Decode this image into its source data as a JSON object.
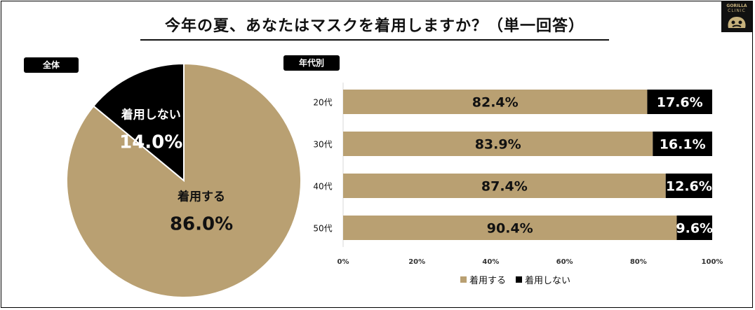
{
  "title": "今年の夏、あなたはマスクを着用しますか？（単一回答）",
  "logo": {
    "line1": "GORILLA",
    "line2": "CLINIC"
  },
  "tags": {
    "overall": "全体",
    "by_age": "年代別"
  },
  "colors": {
    "wear": "#B9A072",
    "no_wear": "#000000"
  },
  "legend": {
    "wear": "着用する",
    "no_wear": "着用しない"
  },
  "chart_data": [
    {
      "type": "pie",
      "name": "全体",
      "slices": [
        {
          "label": "着用する",
          "value": 86.0,
          "display": "86.0%",
          "color": "#B9A072"
        },
        {
          "label": "着用しない",
          "value": 14.0,
          "display": "14.0%",
          "color": "#000000"
        }
      ]
    },
    {
      "type": "bar",
      "orientation": "horizontal",
      "stacked": true,
      "name": "年代別",
      "categories": [
        "20代",
        "30代",
        "40代",
        "50代"
      ],
      "series": [
        {
          "name": "着用する",
          "values": [
            82.4,
            83.9,
            87.4,
            90.4
          ],
          "labels": [
            "82.4%",
            "83.9%",
            "87.4%",
            "90.4%"
          ],
          "color": "#B9A072"
        },
        {
          "name": "着用しない",
          "values": [
            17.6,
            16.1,
            12.6,
            9.6
          ],
          "labels": [
            "17.6%",
            "16.1%",
            "12.6%",
            "9.6%"
          ],
          "color": "#000000"
        }
      ],
      "xlim": [
        0,
        100
      ],
      "xticks": [
        "0%",
        "20%",
        "40%",
        "60%",
        "80%",
        "100%"
      ],
      "legend": "bottom"
    }
  ]
}
